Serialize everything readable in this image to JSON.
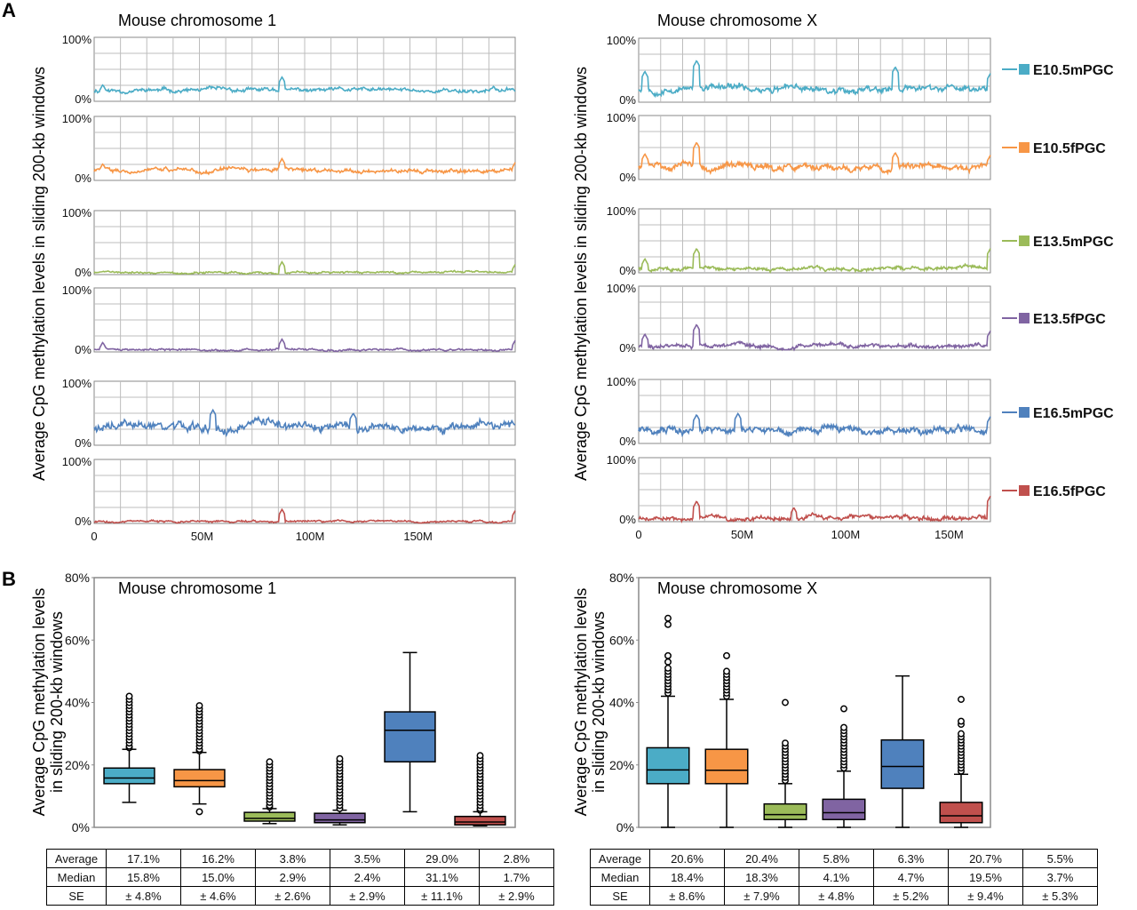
{
  "panels": {
    "A": {
      "label": "A"
    },
    "B": {
      "label": "B"
    }
  },
  "panelA": {
    "ylabel": "Average CpG methylation levels in sliding 200-kb windows",
    "ytick_top": "100%",
    "ytick_bottom": "0%"
  },
  "panelB": {
    "ylabel_line1": "Average CpG methylation levels",
    "ylabel_line2": "in sliding 200-kb windows"
  },
  "legend": [
    {
      "name": "E10.5mPGC",
      "color": "#4bacc6"
    },
    {
      "name": "E10.5fPGC",
      "color": "#f79646"
    },
    {
      "name": "E13.5mPGC",
      "color": "#9bbb59"
    },
    {
      "name": "E13.5fPGC",
      "color": "#8064a2"
    },
    {
      "name": "E16.5mPGC",
      "color": "#4f81bd"
    },
    {
      "name": "E16.5fPGC",
      "color": "#c0504d"
    }
  ],
  "chart_data": [
    {
      "type": "line",
      "title": "Mouse chromosome 1",
      "xlabel": "",
      "ylabel": "Average CpG methylation levels in sliding 200-kb windows",
      "xlim": [
        0,
        195
      ],
      "ylim": [
        0,
        100
      ],
      "xticks": [
        0,
        50,
        100,
        150
      ],
      "xtick_labels": [
        "0",
        "50M",
        "100M",
        "150M"
      ],
      "grid": true,
      "series": [
        {
          "name": "E10.5mPGC",
          "baseline": 17,
          "noise": 5,
          "spikes": [
            [
              4,
              26
            ],
            [
              87,
              38
            ],
            [
              185,
              24
            ]
          ]
        },
        {
          "name": "E10.5fPGC",
          "baseline": 16,
          "noise": 5,
          "spikes": [
            [
              4,
              26
            ],
            [
              87,
              34
            ],
            [
              195,
              28
            ]
          ]
        },
        {
          "name": "E13.5mPGC",
          "baseline": 4,
          "noise": 2.5,
          "spikes": [
            [
              87,
              20
            ],
            [
              195,
              16
            ]
          ]
        },
        {
          "name": "E13.5fPGC",
          "baseline": 3.5,
          "noise": 2.5,
          "spikes": [
            [
              4,
              15
            ],
            [
              87,
              20
            ],
            [
              195,
              18
            ]
          ]
        },
        {
          "name": "E16.5mPGC",
          "baseline": 29,
          "noise": 11,
          "spikes": [
            [
              55,
              55
            ],
            [
              120,
              50
            ]
          ]
        },
        {
          "name": "E16.5fPGC",
          "baseline": 3,
          "noise": 2.5,
          "spikes": [
            [
              87,
              22
            ],
            [
              195,
              20
            ]
          ]
        }
      ]
    },
    {
      "type": "line",
      "title": "Mouse chromosome X",
      "xlabel": "",
      "ylabel": "Average CpG methylation levels in sliding 200-kb windows",
      "xlim": [
        0,
        170
      ],
      "ylim": [
        0,
        100
      ],
      "xticks": [
        0,
        50,
        100,
        150
      ],
      "xtick_labels": [
        "0",
        "50M",
        "100M",
        "150M"
      ],
      "grid": true,
      "series": [
        {
          "name": "E10.5mPGC",
          "baseline": 21,
          "noise": 8,
          "spikes": [
            [
              3,
              48
            ],
            [
              28,
              65
            ],
            [
              124,
              55
            ],
            [
              170,
              45
            ]
          ]
        },
        {
          "name": "E10.5fPGC",
          "baseline": 20,
          "noise": 8,
          "spikes": [
            [
              3,
              40
            ],
            [
              28,
              58
            ],
            [
              124,
              42
            ],
            [
              170,
              38
            ]
          ]
        },
        {
          "name": "E13.5mPGC",
          "baseline": 6,
          "noise": 4.5,
          "spikes": [
            [
              3,
              22
            ],
            [
              28,
              38
            ],
            [
              170,
              38
            ]
          ]
        },
        {
          "name": "E13.5fPGC",
          "baseline": 6.5,
          "noise": 5,
          "spikes": [
            [
              3,
              25
            ],
            [
              28,
              40
            ],
            [
              170,
              30
            ]
          ]
        },
        {
          "name": "E16.5mPGC",
          "baseline": 21,
          "noise": 9,
          "spikes": [
            [
              28,
              45
            ],
            [
              48,
              47
            ],
            [
              170,
              42
            ]
          ]
        },
        {
          "name": "E16.5fPGC",
          "baseline": 5.5,
          "noise": 5,
          "spikes": [
            [
              28,
              32
            ],
            [
              75,
              22
            ],
            [
              170,
              40
            ]
          ]
        }
      ]
    },
    {
      "type": "box",
      "title": "Mouse chromosome 1",
      "ylabel": "Average CpG methylation levels in sliding 200-kb windows",
      "ylim": [
        0,
        80
      ],
      "yticks": [
        0,
        20,
        40,
        60,
        80
      ],
      "ytick_labels": [
        "0%",
        "20%",
        "40%",
        "60%",
        "80%"
      ],
      "grid": false,
      "boxes": [
        {
          "name": "E10.5mPGC",
          "min": 8,
          "q1": 14,
          "median": 15.8,
          "q3": 19,
          "max": 25,
          "outliers": [
            25.5,
            26,
            27,
            28,
            29,
            30,
            31,
            32,
            33,
            34,
            35,
            36,
            37,
            38,
            39,
            40,
            41,
            42
          ]
        },
        {
          "name": "E10.5fPGC",
          "min": 7.5,
          "q1": 13,
          "median": 15.0,
          "q3": 18.5,
          "max": 24,
          "outliers": [
            5,
            24.5,
            25,
            26,
            27,
            28,
            29,
            30,
            31,
            32,
            33,
            34,
            35,
            36,
            37,
            38,
            39
          ]
        },
        {
          "name": "E13.5mPGC",
          "min": 1.2,
          "q1": 2,
          "median": 2.9,
          "q3": 4.8,
          "max": 6,
          "outliers": [
            6.5,
            7,
            8,
            9,
            10,
            11,
            12,
            13,
            14,
            15,
            16,
            17,
            18,
            19,
            20,
            21
          ]
        },
        {
          "name": "E13.5fPGC",
          "min": 0.8,
          "q1": 1.5,
          "median": 2.4,
          "q3": 4.5,
          "max": 5.5,
          "outliers": [
            6,
            7,
            8,
            9,
            10,
            11,
            12,
            13,
            14,
            15,
            16,
            17,
            18,
            19,
            20,
            21,
            22
          ]
        },
        {
          "name": "E16.5mPGC",
          "min": 5,
          "q1": 21,
          "median": 31.1,
          "q3": 37,
          "max": 56,
          "outliers": []
        },
        {
          "name": "E16.5fPGC",
          "min": 0.5,
          "q1": 0.8,
          "median": 1.7,
          "q3": 3.5,
          "max": 5,
          "outliers": [
            5.5,
            6,
            7,
            8,
            9,
            10,
            11,
            12,
            13,
            14,
            15,
            16,
            17,
            18,
            19,
            20,
            21,
            22,
            23
          ]
        }
      ],
      "table": {
        "row_labels": [
          "Average",
          "Median",
          "SE"
        ],
        "average": [
          "17.1%",
          "16.2%",
          "3.8%",
          "3.5%",
          "29.0%",
          "2.8%"
        ],
        "median": [
          "15.8%",
          "15.0%",
          "2.9%",
          "2.4%",
          "31.1%",
          "1.7%"
        ],
        "se": [
          "± 4.8%",
          "± 4.6%",
          "± 2.6%",
          "± 2.9%",
          "± 11.1%",
          "± 2.9%"
        ]
      }
    },
    {
      "type": "box",
      "title": "Mouse chromosome X",
      "ylabel": "Average CpG methylation levels in sliding 200-kb windows",
      "ylim": [
        0,
        80
      ],
      "yticks": [
        0,
        20,
        40,
        60,
        80
      ],
      "ytick_labels": [
        "0%",
        "20%",
        "40%",
        "60%",
        "80%"
      ],
      "grid": false,
      "boxes": [
        {
          "name": "E10.5mPGC",
          "min": 0,
          "q1": 14,
          "median": 18.4,
          "q3": 25.5,
          "max": 42,
          "outliers": [
            43,
            44,
            45,
            46,
            47,
            48,
            49,
            50,
            51,
            53,
            55,
            65,
            67
          ]
        },
        {
          "name": "E10.5fPGC",
          "min": 0,
          "q1": 14,
          "median": 18.3,
          "q3": 25,
          "max": 41,
          "outliers": [
            42,
            43,
            44,
            45,
            46,
            47,
            48,
            49,
            50,
            55
          ]
        },
        {
          "name": "E13.5mPGC",
          "min": 0,
          "q1": 2.5,
          "median": 4.1,
          "q3": 7.5,
          "max": 14,
          "outliers": [
            15,
            16,
            17,
            18,
            19,
            20,
            21,
            22,
            23,
            24,
            25,
            26,
            27,
            40
          ]
        },
        {
          "name": "E13.5fPGC",
          "min": 0,
          "q1": 2.5,
          "median": 4.7,
          "q3": 9,
          "max": 18,
          "outliers": [
            19,
            20,
            21,
            22,
            23,
            24,
            25,
            26,
            27,
            28,
            29,
            30,
            31,
            32,
            38
          ]
        },
        {
          "name": "E16.5mPGC",
          "min": 0,
          "q1": 12.5,
          "median": 19.5,
          "q3": 28,
          "max": 48.5,
          "outliers": []
        },
        {
          "name": "E16.5fPGC",
          "min": 0,
          "q1": 1.5,
          "median": 3.7,
          "q3": 8,
          "max": 17,
          "outliers": [
            18,
            19,
            20,
            21,
            22,
            23,
            24,
            25,
            26,
            27,
            28,
            29,
            30,
            33,
            34,
            41
          ]
        }
      ],
      "table": {
        "row_labels": [
          "Average",
          "Median",
          "SE"
        ],
        "average": [
          "20.6%",
          "20.4%",
          "5.8%",
          "6.3%",
          "20.7%",
          "5.5%"
        ],
        "median": [
          "18.4%",
          "18.3%",
          "4.1%",
          "4.7%",
          "19.5%",
          "3.7%"
        ],
        "se": [
          "± 8.6%",
          "± 7.9%",
          "± 4.8%",
          "± 5.2%",
          "± 9.4%",
          "± 5.3%"
        ]
      }
    }
  ]
}
